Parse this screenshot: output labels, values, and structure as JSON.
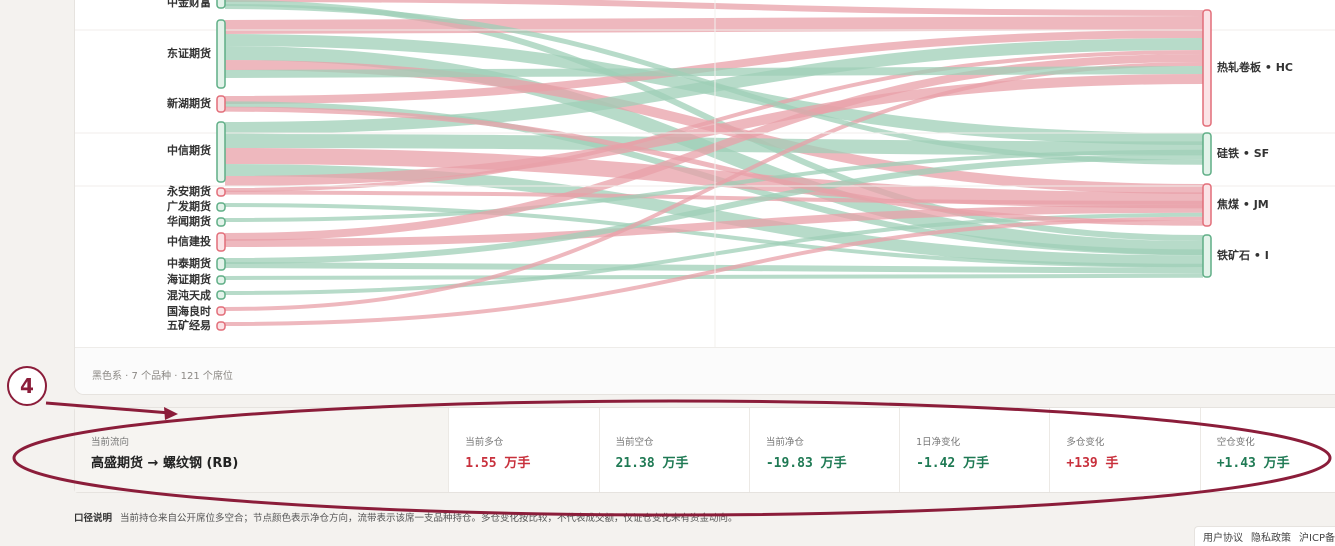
{
  "sankey": {
    "left_nodes": [
      {
        "label": "中金财富",
        "color": "green"
      },
      {
        "label": "东证期货",
        "color": "green"
      },
      {
        "label": "新湖期货",
        "color": "red"
      },
      {
        "label": "中信期货",
        "color": "green"
      },
      {
        "label": "永安期货",
        "color": "red"
      },
      {
        "label": "广发期货",
        "color": "green"
      },
      {
        "label": "华闻期货",
        "color": "green"
      },
      {
        "label": "中信建投",
        "color": "red"
      },
      {
        "label": "中泰期货",
        "color": "green"
      },
      {
        "label": "海证期货",
        "color": "green"
      },
      {
        "label": "混沌天成",
        "color": "green"
      },
      {
        "label": "国海良时",
        "color": "red"
      },
      {
        "label": "五矿经易",
        "color": "red"
      }
    ],
    "right_nodes": [
      {
        "label": "热轧卷板 • HC",
        "color": "red"
      },
      {
        "label": "硅铁 • SF",
        "color": "green"
      },
      {
        "label": "焦煤 • JM",
        "color": "red"
      },
      {
        "label": "铁矿石 • I",
        "color": "green"
      }
    ],
    "footer_meta": "黑色系 · 7 个品种 · 121 个席位"
  },
  "summary": {
    "flow_label": "当前流向",
    "flow_value": "高盛期货 → 螺纹钢 (RB)",
    "metrics": [
      {
        "label": "当前多仓",
        "value": "1.55 万手",
        "tone": "red"
      },
      {
        "label": "当前空仓",
        "value": "21.38 万手",
        "tone": "green"
      },
      {
        "label": "当前净仓",
        "value": "-19.83 万手",
        "tone": "green"
      },
      {
        "label": "1日净变化",
        "value": "-1.42 万手",
        "tone": "green"
      },
      {
        "label": "多仓变化",
        "value": "+139 手",
        "tone": "red"
      },
      {
        "label": "空仓变化",
        "value": "+1.43 万手",
        "tone": "green"
      }
    ]
  },
  "note": {
    "title": "口径说明",
    "text": "当前持仓来自公开席位多空合；节点颜色表示净仓方向，流带表示该席一支品种持仓。多仓变化按比较，不代表成交额，仅证仓变化未有资金动向。"
  },
  "links": [
    "用户协议",
    "隐私政策",
    "沪ICP备"
  ],
  "annotation": {
    "badge": "4"
  },
  "colors": {
    "red": "#e8a0a8",
    "green": "#9fcfb7",
    "red_node": "#e26d78",
    "green_node": "#5fae86"
  }
}
